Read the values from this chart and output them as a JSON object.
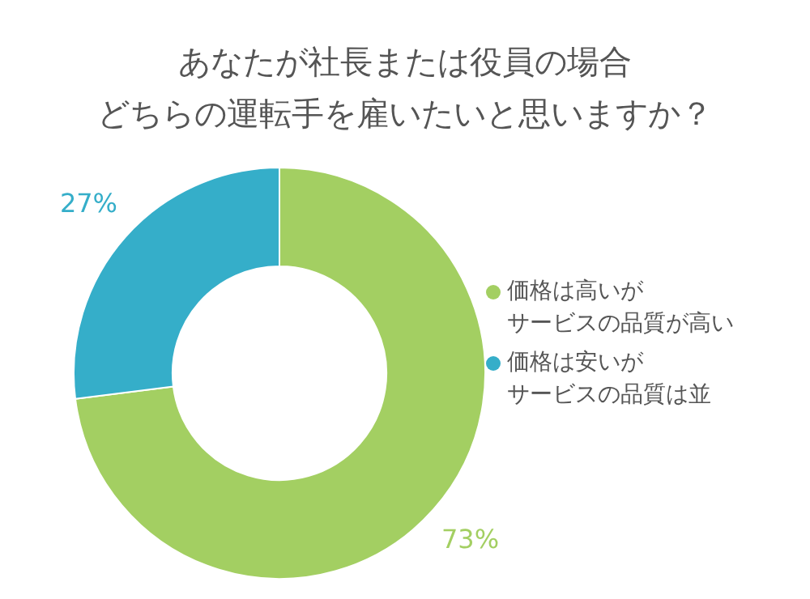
{
  "chart_data": {
    "type": "donut",
    "title": "あなたが社長または役員の場合",
    "subtitle": "どちらの運転手を雇いたいと思いますか？",
    "categories": [
      "価格は高いがサービスの品質が高い",
      "価格は安いがサービスの品質は並"
    ],
    "values": [
      73,
      27
    ],
    "colors": [
      "#a3cf62",
      "#35aec9"
    ],
    "value_labels": [
      "73%",
      "27%"
    ],
    "legend": "right"
  }
}
